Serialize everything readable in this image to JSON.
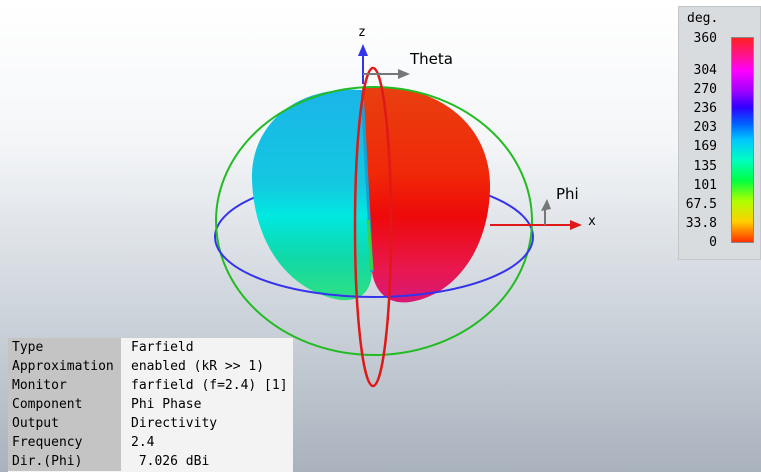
{
  "legend": {
    "unit": "deg.",
    "ticks": [
      "360",
      "304",
      "270",
      "236",
      "203",
      "169",
      "135",
      "101",
      "67.5",
      "33.8",
      "0"
    ],
    "tick_values": [
      360,
      304,
      270,
      236,
      203,
      169,
      135,
      101,
      67.5,
      33.8,
      0
    ],
    "range": [
      0,
      360
    ]
  },
  "axes": {
    "z_label": "z",
    "x_label": "x",
    "theta_label": "Theta",
    "phi_label": "Phi"
  },
  "info": [
    {
      "key": "Type",
      "value": "Farfield"
    },
    {
      "key": "Approximation",
      "value": "enabled (kR >> 1)"
    },
    {
      "key": "Monitor",
      "value": "farfield (f=2.4) [1]"
    },
    {
      "key": "Component",
      "value": "Phi Phase"
    },
    {
      "key": "Output",
      "value": "Directivity"
    },
    {
      "key": "Frequency",
      "value": "2.4"
    },
    {
      "key": "Dir.(Phi)",
      "value": " 7.026 dBi"
    }
  ],
  "colors": {
    "z_axis": "#3333ee",
    "x_axis": "#e01818",
    "theta_marker": "#777777",
    "circle_green": "#22bb22",
    "circle_blue": "#3333ee",
    "circle_red": "#e01818"
  }
}
